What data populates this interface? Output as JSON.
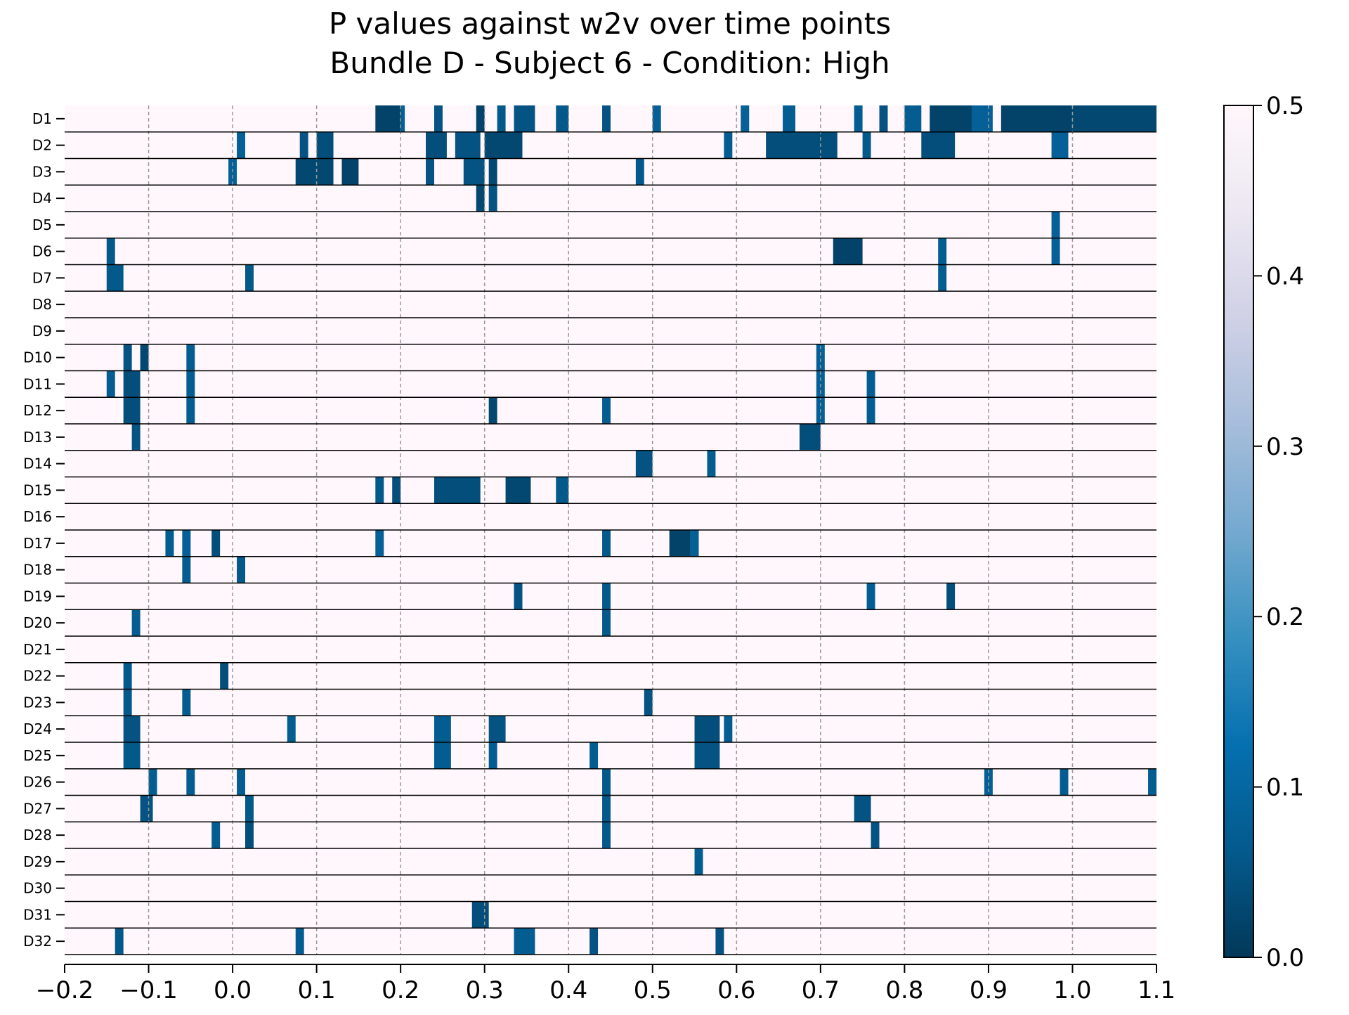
{
  "chart_data": {
    "type": "heatmap",
    "title_line1": "P values against w2v over time points",
    "title_line2": "Bundle D - Subject 6 - Condition: High",
    "xlabel": "",
    "ylabel": "",
    "xlim": [
      -0.2,
      1.1
    ],
    "xticks": [
      "−0.2",
      "−0.1",
      "0.0",
      "0.1",
      "0.2",
      "0.3",
      "0.4",
      "0.5",
      "0.6",
      "0.7",
      "0.8",
      "0.9",
      "1.0",
      "1.1"
    ],
    "xtick_values": [
      -0.2,
      -0.1,
      0.0,
      0.1,
      0.2,
      0.3,
      0.4,
      0.5,
      0.6,
      0.7,
      0.8,
      0.9,
      1.0,
      1.1
    ],
    "vertical_gridlines": [
      -0.1,
      0.0,
      0.1,
      0.2,
      0.3,
      0.4,
      0.5,
      0.6,
      0.7,
      0.8,
      0.9,
      1.0
    ],
    "grid": "vertical dashed",
    "colorbar": {
      "range": [
        0.0,
        0.5
      ],
      "ticks": [
        "0.0",
        "0.1",
        "0.2",
        "0.3",
        "0.4",
        "0.5"
      ],
      "tick_values": [
        0.0,
        0.1,
        0.2,
        0.3,
        0.4,
        0.5
      ],
      "colormap": "PuBu_r",
      "colors": [
        "#023858",
        "#045a8d",
        "#0570b0",
        "#3690c0",
        "#74a9cf",
        "#a6bddb",
        "#d0d1e6",
        "#ece7f2",
        "#fff7fb"
      ],
      "placement": "right"
    },
    "background_value": 0.5,
    "rows": [
      {
        "label": "D1",
        "segments": [
          [
            0.17,
            0.2,
            0.02
          ],
          [
            0.2,
            0.205,
            0.08
          ],
          [
            0.24,
            0.25,
            0.05
          ],
          [
            0.29,
            0.3,
            0.02
          ],
          [
            0.315,
            0.325,
            0.06
          ],
          [
            0.335,
            0.36,
            0.05
          ],
          [
            0.385,
            0.4,
            0.06
          ],
          [
            0.44,
            0.45,
            0.05
          ],
          [
            0.5,
            0.51,
            0.08
          ],
          [
            0.605,
            0.615,
            0.08
          ],
          [
            0.655,
            0.67,
            0.07
          ],
          [
            0.74,
            0.75,
            0.07
          ],
          [
            0.77,
            0.78,
            0.05
          ],
          [
            0.8,
            0.82,
            0.07
          ],
          [
            0.83,
            0.88,
            0.02
          ],
          [
            0.88,
            0.905,
            0.08
          ],
          [
            0.915,
            1.0,
            0.02
          ],
          [
            1.0,
            1.1,
            0.03
          ]
        ]
      },
      {
        "label": "D2",
        "segments": [
          [
            0.005,
            0.015,
            0.08
          ],
          [
            0.08,
            0.09,
            0.05
          ],
          [
            0.1,
            0.12,
            0.04
          ],
          [
            0.23,
            0.255,
            0.04
          ],
          [
            0.265,
            0.295,
            0.05
          ],
          [
            0.3,
            0.345,
            0.03
          ],
          [
            0.585,
            0.595,
            0.07
          ],
          [
            0.635,
            0.72,
            0.04
          ],
          [
            0.75,
            0.76,
            0.06
          ],
          [
            0.82,
            0.86,
            0.04
          ],
          [
            0.975,
            0.995,
            0.08
          ]
        ]
      },
      {
        "label": "D3",
        "segments": [
          [
            -0.005,
            0.005,
            0.08
          ],
          [
            0.075,
            0.12,
            0.03
          ],
          [
            0.13,
            0.15,
            0.02
          ],
          [
            0.23,
            0.24,
            0.05
          ],
          [
            0.275,
            0.3,
            0.05
          ],
          [
            0.305,
            0.315,
            0.03
          ],
          [
            0.48,
            0.49,
            0.06
          ]
        ]
      },
      {
        "label": "D4",
        "segments": [
          [
            0.29,
            0.3,
            0.03
          ],
          [
            0.305,
            0.315,
            0.05
          ]
        ]
      },
      {
        "label": "D5",
        "segments": [
          [
            0.975,
            0.985,
            0.08
          ]
        ]
      },
      {
        "label": "D6",
        "segments": [
          [
            -0.15,
            -0.14,
            0.06
          ],
          [
            0.715,
            0.75,
            0.02
          ],
          [
            0.84,
            0.85,
            0.07
          ],
          [
            0.975,
            0.985,
            0.08
          ]
        ]
      },
      {
        "label": "D7",
        "segments": [
          [
            -0.15,
            -0.13,
            0.06
          ],
          [
            0.015,
            0.025,
            0.06
          ],
          [
            0.84,
            0.85,
            0.07
          ]
        ]
      },
      {
        "label": "D8",
        "segments": []
      },
      {
        "label": "D9",
        "segments": []
      },
      {
        "label": "D10",
        "segments": [
          [
            -0.13,
            -0.12,
            0.05
          ],
          [
            -0.11,
            -0.1,
            0.03
          ],
          [
            -0.055,
            -0.045,
            0.07
          ],
          [
            0.695,
            0.705,
            0.08
          ]
        ]
      },
      {
        "label": "D11",
        "segments": [
          [
            -0.15,
            -0.14,
            0.07
          ],
          [
            -0.13,
            -0.11,
            0.04
          ],
          [
            -0.055,
            -0.045,
            0.07
          ],
          [
            0.695,
            0.705,
            0.08
          ],
          [
            0.755,
            0.765,
            0.07
          ]
        ]
      },
      {
        "label": "D12",
        "segments": [
          [
            -0.13,
            -0.11,
            0.04
          ],
          [
            -0.055,
            -0.045,
            0.07
          ],
          [
            0.305,
            0.315,
            0.03
          ],
          [
            0.44,
            0.45,
            0.07
          ],
          [
            0.695,
            0.705,
            0.08
          ],
          [
            0.755,
            0.765,
            0.07
          ]
        ]
      },
      {
        "label": "D13",
        "segments": [
          [
            -0.12,
            -0.11,
            0.05
          ],
          [
            0.675,
            0.7,
            0.04
          ]
        ]
      },
      {
        "label": "D14",
        "segments": [
          [
            0.48,
            0.5,
            0.05
          ],
          [
            0.565,
            0.575,
            0.07
          ]
        ]
      },
      {
        "label": "D15",
        "segments": [
          [
            0.17,
            0.18,
            0.06
          ],
          [
            0.19,
            0.2,
            0.04
          ],
          [
            0.24,
            0.295,
            0.04
          ],
          [
            0.325,
            0.355,
            0.03
          ],
          [
            0.385,
            0.4,
            0.06
          ]
        ]
      },
      {
        "label": "D16",
        "segments": []
      },
      {
        "label": "D17",
        "segments": [
          [
            -0.08,
            -0.07,
            0.07
          ],
          [
            -0.06,
            -0.05,
            0.08
          ],
          [
            -0.025,
            -0.015,
            0.04
          ],
          [
            0.17,
            0.18,
            0.08
          ],
          [
            0.44,
            0.45,
            0.06
          ],
          [
            0.52,
            0.545,
            0.02
          ],
          [
            0.545,
            0.555,
            0.08
          ]
        ]
      },
      {
        "label": "D18",
        "segments": [
          [
            -0.06,
            -0.05,
            0.07
          ],
          [
            0.005,
            0.015,
            0.06
          ]
        ]
      },
      {
        "label": "D19",
        "segments": [
          [
            0.335,
            0.345,
            0.05
          ],
          [
            0.44,
            0.45,
            0.06
          ],
          [
            0.755,
            0.765,
            0.07
          ],
          [
            0.85,
            0.86,
            0.04
          ]
        ]
      },
      {
        "label": "D20",
        "segments": [
          [
            -0.12,
            -0.11,
            0.07
          ],
          [
            0.44,
            0.45,
            0.06
          ]
        ]
      },
      {
        "label": "D21",
        "segments": []
      },
      {
        "label": "D22",
        "segments": [
          [
            -0.13,
            -0.12,
            0.06
          ],
          [
            -0.015,
            -0.005,
            0.04
          ]
        ]
      },
      {
        "label": "D23",
        "segments": [
          [
            -0.13,
            -0.12,
            0.06
          ],
          [
            -0.06,
            -0.05,
            0.07
          ],
          [
            0.49,
            0.5,
            0.05
          ]
        ]
      },
      {
        "label": "D24",
        "segments": [
          [
            -0.13,
            -0.11,
            0.05
          ],
          [
            0.065,
            0.075,
            0.07
          ],
          [
            0.24,
            0.26,
            0.07
          ],
          [
            0.305,
            0.325,
            0.05
          ],
          [
            0.55,
            0.58,
            0.04
          ],
          [
            0.585,
            0.595,
            0.07
          ]
        ]
      },
      {
        "label": "D25",
        "segments": [
          [
            -0.13,
            -0.11,
            0.06
          ],
          [
            0.24,
            0.26,
            0.07
          ],
          [
            0.305,
            0.315,
            0.07
          ],
          [
            0.425,
            0.435,
            0.07
          ],
          [
            0.55,
            0.58,
            0.05
          ]
        ]
      },
      {
        "label": "D26",
        "segments": [
          [
            -0.1,
            -0.09,
            0.07
          ],
          [
            -0.055,
            -0.045,
            0.07
          ],
          [
            0.005,
            0.015,
            0.07
          ],
          [
            0.44,
            0.45,
            0.06
          ],
          [
            0.895,
            0.905,
            0.08
          ],
          [
            0.985,
            0.995,
            0.07
          ],
          [
            1.09,
            1.1,
            0.07
          ]
        ]
      },
      {
        "label": "D27",
        "segments": [
          [
            -0.11,
            -0.095,
            0.05
          ],
          [
            0.015,
            0.025,
            0.06
          ],
          [
            0.44,
            0.45,
            0.06
          ],
          [
            0.74,
            0.76,
            0.05
          ]
        ]
      },
      {
        "label": "D28",
        "segments": [
          [
            -0.025,
            -0.015,
            0.07
          ],
          [
            0.015,
            0.025,
            0.04
          ],
          [
            0.44,
            0.45,
            0.06
          ],
          [
            0.76,
            0.77,
            0.05
          ]
        ]
      },
      {
        "label": "D29",
        "segments": [
          [
            0.55,
            0.56,
            0.07
          ]
        ]
      },
      {
        "label": "D30",
        "segments": []
      },
      {
        "label": "D31",
        "segments": [
          [
            0.285,
            0.305,
            0.04
          ]
        ]
      },
      {
        "label": "D32",
        "segments": [
          [
            -0.14,
            -0.13,
            0.06
          ],
          [
            0.075,
            0.085,
            0.07
          ],
          [
            0.335,
            0.36,
            0.07
          ],
          [
            0.425,
            0.435,
            0.05
          ],
          [
            0.575,
            0.585,
            0.05
          ]
        ]
      }
    ]
  }
}
